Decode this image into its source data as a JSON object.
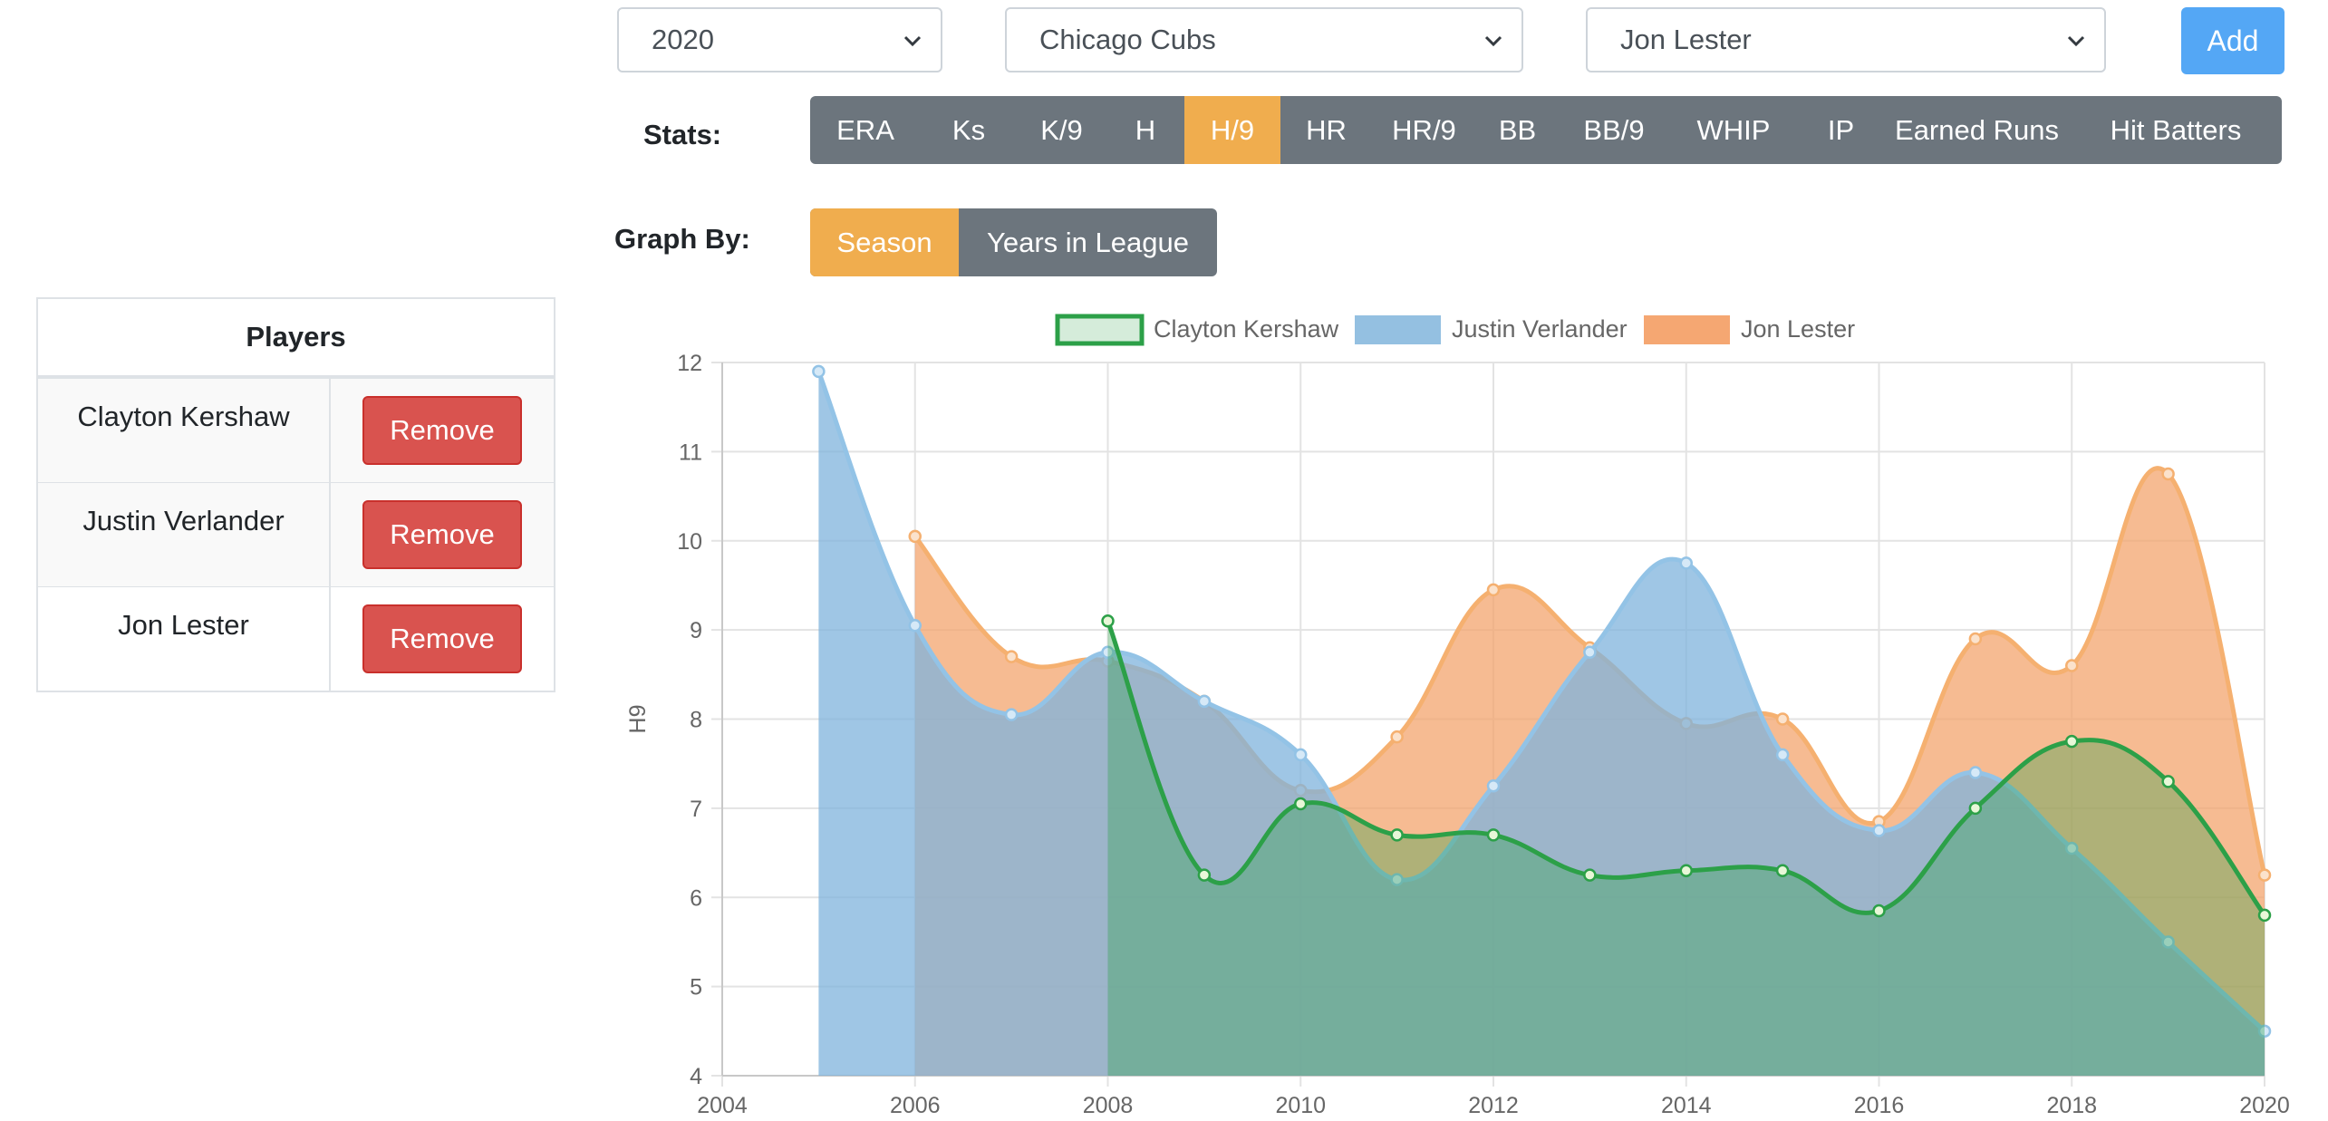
{
  "controls": {
    "year_select": "2020",
    "team_select": "Chicago Cubs",
    "player_select": "Jon Lester",
    "add_label": "Add",
    "stats_label": "Stats:",
    "graph_by_label": "Graph By:"
  },
  "stats_tabs": [
    "ERA",
    "Ks",
    "K/9",
    "H",
    "H/9",
    "HR",
    "HR/9",
    "BB",
    "BB/9",
    "WHIP",
    "IP",
    "Earned Runs",
    "Hit Batters"
  ],
  "active_stat": "H/9",
  "graph_by": {
    "options": [
      "Season",
      "Years in League"
    ],
    "active": "Season"
  },
  "players_panel": {
    "header": "Players",
    "remove_label": "Remove",
    "players": [
      "Clayton Kershaw",
      "Justin Verlander",
      "Jon Lester"
    ]
  },
  "colors": {
    "accent": "#f0ad4e",
    "inactive_tab": "#6c757d",
    "add_button": "#54a7f5",
    "remove_button": "#d9534f",
    "kershaw": "#2ca048",
    "verlander": "#7fb3dc",
    "lester": "#f3a46e"
  },
  "chart_data": {
    "type": "area",
    "title": "",
    "xlabel": "",
    "ylabel": "H9",
    "xlim": [
      2004,
      2020
    ],
    "ylim": [
      4,
      12
    ],
    "x_ticks": [
      "2004",
      "2006",
      "2008",
      "2010",
      "2012",
      "2014",
      "2016",
      "2018",
      "2020"
    ],
    "y_ticks": [
      "4",
      "5",
      "6",
      "7",
      "8",
      "9",
      "10",
      "11",
      "12"
    ],
    "grid": true,
    "legend": "top-center",
    "series": [
      {
        "name": "Clayton Kershaw",
        "x": [
          2008,
          2009,
          2010,
          2011,
          2012,
          2013,
          2014,
          2015,
          2016,
          2017,
          2018,
          2019,
          2020
        ],
        "values": [
          9.1,
          6.25,
          7.05,
          6.7,
          6.7,
          6.25,
          6.3,
          6.3,
          5.85,
          7.0,
          7.75,
          7.3,
          5.8
        ]
      },
      {
        "name": "Justin Verlander",
        "x": [
          2005,
          2006,
          2007,
          2008,
          2009,
          2010,
          2011,
          2012,
          2013,
          2014,
          2015,
          2016,
          2017,
          2018,
          2019,
          2020
        ],
        "values": [
          11.9,
          9.05,
          8.05,
          8.75,
          8.2,
          7.6,
          6.2,
          7.25,
          8.75,
          9.75,
          7.6,
          6.75,
          7.4,
          6.55,
          5.5,
          4.5
        ]
      },
      {
        "name": "Jon Lester",
        "x": [
          2006,
          2007,
          2008,
          2009,
          2010,
          2011,
          2012,
          2013,
          2014,
          2015,
          2016,
          2017,
          2018,
          2019,
          2020
        ],
        "values": [
          10.05,
          8.7,
          8.65,
          8.2,
          7.2,
          7.8,
          9.45,
          8.8,
          7.95,
          8.0,
          6.85,
          8.9,
          8.6,
          10.75,
          6.25
        ]
      }
    ]
  }
}
